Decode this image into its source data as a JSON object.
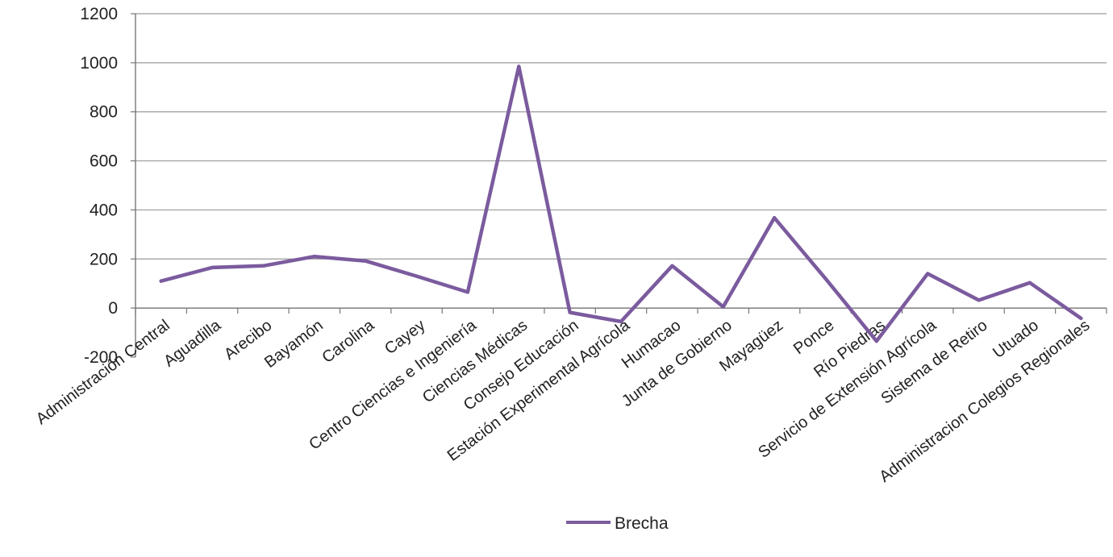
{
  "chart_data": {
    "type": "line",
    "categories": [
      "Administración Central",
      "Aguadilla",
      "Arecibo",
      "Bayamón",
      "Carolina",
      "Cayey",
      "Centro Ciencias e Ingeniería",
      "Ciencias Médicas",
      "Consejo Educación",
      "Estación Experimental Agrícola",
      "Humacao",
      "Junta de Gobierno",
      "Mayagüez",
      "Ponce",
      "Río Piedras",
      "Servicio de Extensión Agrícola",
      "Sistema de Retiro",
      "Utuado",
      "Administracion Colegios Regionales"
    ],
    "series": [
      {
        "name": "Brecha",
        "color": "#7b5b9e",
        "values": [
          110,
          165,
          172,
          210,
          192,
          130,
          65,
          985,
          -18,
          -55,
          172,
          5,
          368,
          120,
          -135,
          140,
          32,
          103,
          -42
        ]
      }
    ],
    "ylim": [
      -200,
      1200
    ],
    "yticks": [
      -200,
      0,
      200,
      400,
      600,
      800,
      1000,
      1200
    ],
    "grid": true,
    "legend": "bottom-center",
    "title": "",
    "xlabel": "",
    "ylabel": ""
  }
}
